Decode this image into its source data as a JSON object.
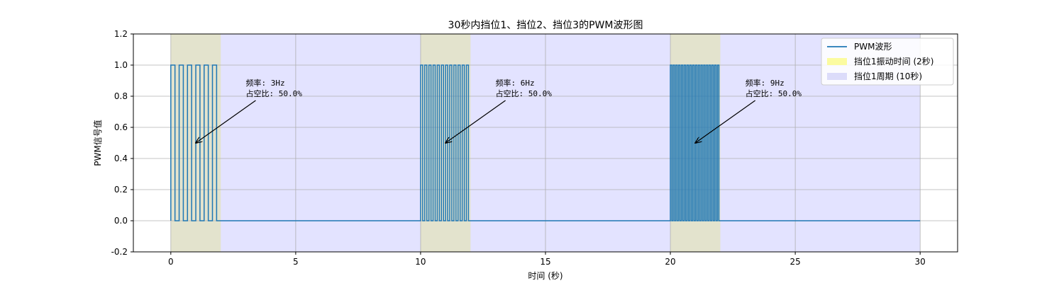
{
  "chart_data": {
    "type": "line",
    "title": "30秒内挡位1、挡位2、挡位3的PWM波形图",
    "xlabel": "时间 (秒)",
    "ylabel": "PWM信号值",
    "xlim": [
      -1.5,
      31.5
    ],
    "ylim": [
      -0.2,
      1.2
    ],
    "xticks": [
      0,
      5,
      10,
      15,
      20,
      25,
      30
    ],
    "yticks": [
      -0.2,
      0.0,
      0.2,
      0.4,
      0.6,
      0.8,
      1.0,
      1.2
    ],
    "xtick_labels": [
      "0",
      "5",
      "10",
      "15",
      "20",
      "25",
      "30"
    ],
    "ytick_labels": [
      "-0.2",
      "0.0",
      "0.2",
      "0.4",
      "0.6",
      "0.8",
      "1.0",
      "1.2"
    ],
    "grid": true,
    "legend_position": "top-right",
    "series": [
      {
        "name": "PWM波形",
        "color": "#1f77b4",
        "segments": [
          {
            "start": 0,
            "end": 2,
            "frequency_hz": 3,
            "duty": 0.5
          },
          {
            "start": 10,
            "end": 12,
            "frequency_hz": 6,
            "duty": 0.5
          },
          {
            "start": 20,
            "end": 22,
            "frequency_hz": 9,
            "duty": 0.5
          }
        ],
        "baseline": 0.0,
        "high": 1.0,
        "x_end": 30
      }
    ],
    "spans": [
      {
        "name": "挡位1振动时间 (2秒)",
        "color": "#ffff80",
        "opacity": 0.5,
        "ranges": [
          [
            0,
            2
          ],
          [
            10,
            12
          ],
          [
            20,
            22
          ]
        ]
      },
      {
        "name": "挡位1周期 (10秒)",
        "color": "#8080ff",
        "opacity": 0.22,
        "ranges": [
          [
            0,
            10
          ],
          [
            10,
            20
          ],
          [
            20,
            30
          ]
        ]
      }
    ],
    "annotations": [
      {
        "line1": "频率: 3Hz",
        "line2": "占空比: 50.0%",
        "xy": [
          1,
          0.5
        ],
        "xytext": [
          3,
          0.8
        ]
      },
      {
        "line1": "频率: 6Hz",
        "line2": "占空比: 50.0%",
        "xy": [
          11,
          0.5
        ],
        "xytext": [
          13,
          0.8
        ]
      },
      {
        "line1": "频率: 9Hz",
        "line2": "占空比: 50.0%",
        "xy": [
          21,
          0.5
        ],
        "xytext": [
          23,
          0.8
        ]
      }
    ],
    "legend": [
      {
        "label": "PWM波形",
        "kind": "line",
        "color": "#1f77b4"
      },
      {
        "label": "挡位1振动时间 (2秒)",
        "kind": "patch",
        "color": "#fbfba0"
      },
      {
        "label": "挡位1周期 (10秒)",
        "kind": "patch",
        "color": "#dcdcfa"
      }
    ]
  }
}
